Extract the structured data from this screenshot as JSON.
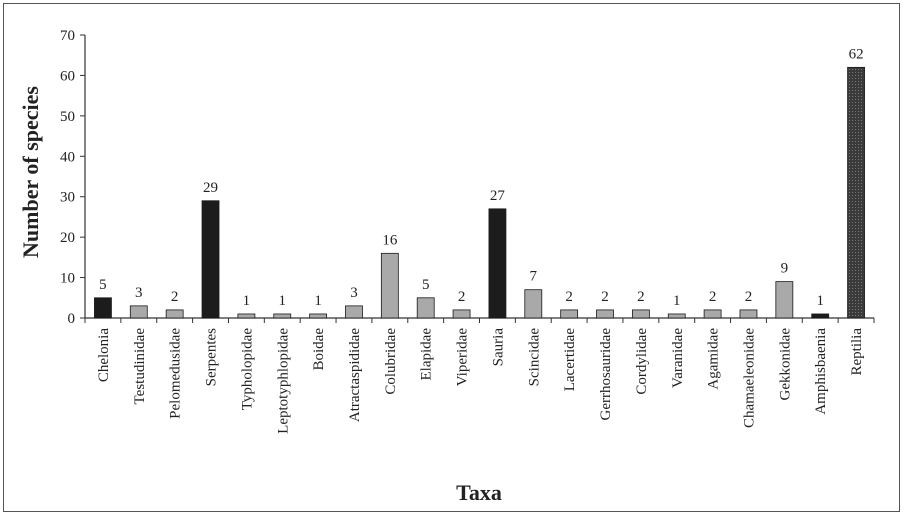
{
  "chart_data": {
    "type": "bar",
    "xlabel": "Taxa",
    "ylabel": "Number of species",
    "ylim": [
      0,
      70
    ],
    "yticks": [
      0,
      10,
      20,
      30,
      40,
      50,
      60,
      70
    ],
    "grid": false,
    "legend": "none",
    "categories": [
      "Chelonia",
      "Testudinidae",
      "Pelomedusidae",
      "Serpentes",
      "Typholopidae",
      "Leptotyphlopidae",
      "Boidae",
      "Atractaspididae",
      "Colubridae",
      "Elapidae",
      "Viperidae",
      "Sauria",
      "Scincidae",
      "Lacertidae",
      "Gerrhosauridae",
      "Cordylidae",
      "Varanidae",
      "Agamidae",
      "Chamaeleonidae",
      "Gekkonidae",
      "Amphisbaenia",
      "Reptilia"
    ],
    "values": [
      5,
      3,
      2,
      29,
      1,
      1,
      1,
      3,
      16,
      5,
      2,
      27,
      7,
      2,
      2,
      2,
      1,
      2,
      2,
      9,
      1,
      62
    ],
    "bar_styles": [
      "dark",
      "light",
      "light",
      "dark",
      "light",
      "light",
      "light",
      "light",
      "light",
      "light",
      "light",
      "dark",
      "light",
      "light",
      "light",
      "light",
      "light",
      "light",
      "light",
      "light",
      "dark",
      "hatched"
    ],
    "colors": {
      "dark": "#1c1c1c",
      "light": "#a9a9a9",
      "hatched": "#2a2a2a",
      "axis": "#333333"
    }
  }
}
